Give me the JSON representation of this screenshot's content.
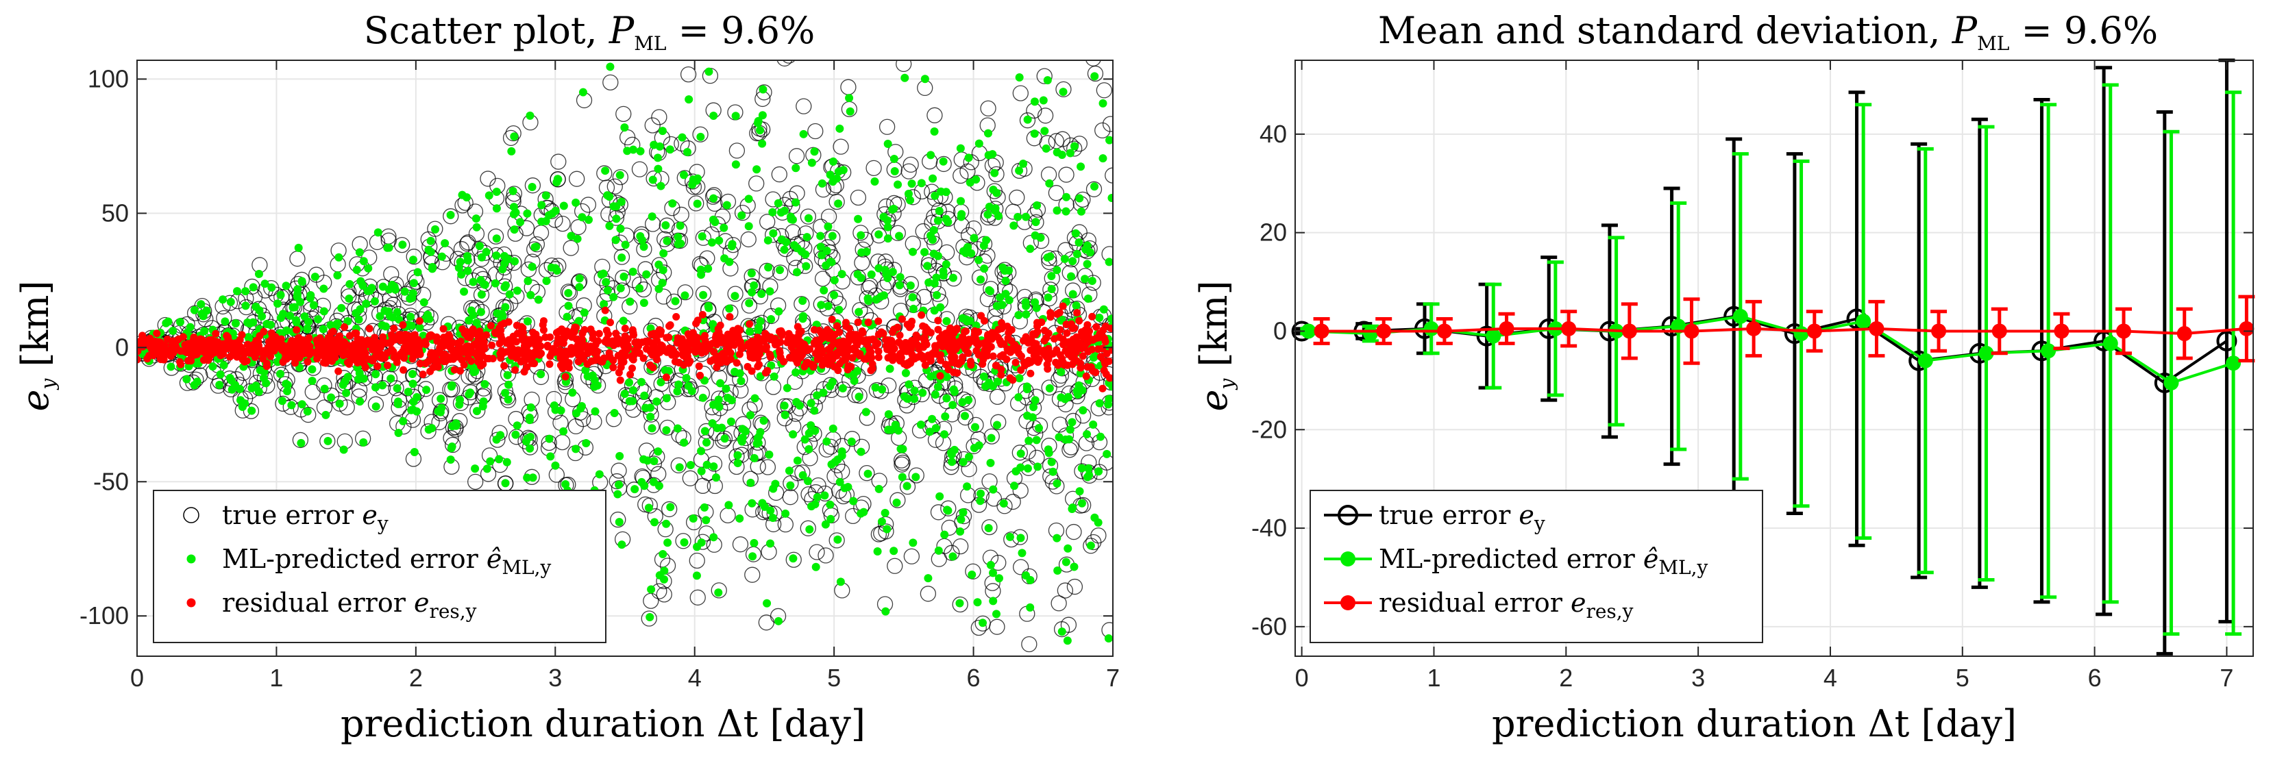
{
  "chart_data": [
    {
      "type": "scatter",
      "title": {
        "text": "Scatter plot, ",
        "var": "P",
        "sub": "ML",
        "rest": " = 9.6%"
      },
      "xlabel": "prediction duration Δt [day]",
      "ylabel": {
        "var": "e",
        "sub": "y",
        "unit": "[km]"
      },
      "xlim": [
        0,
        7
      ],
      "ylim": [
        -115,
        107
      ],
      "xticks": [
        "0",
        "1",
        "2",
        "3",
        "4",
        "5",
        "6",
        "7"
      ],
      "yticks": [
        "100",
        "50",
        "0",
        "-50",
        "-100"
      ],
      "ytick_values": [
        100,
        50,
        0,
        -50,
        -100
      ],
      "xtick_values": [
        0,
        1,
        2,
        3,
        4,
        5,
        6,
        7
      ],
      "grid": true,
      "legend_position": "bottom-left",
      "legend": [
        {
          "label": "true error ",
          "var": "e",
          "sub": "y",
          "marker": "open-circle",
          "color": "#000000"
        },
        {
          "label": "ML-predicted error ",
          "var": "ê",
          "sub": "ML,y",
          "marker": "dot",
          "color": "#00ee00"
        },
        {
          "label": "residual error ",
          "var": "e",
          "sub": "res,y",
          "marker": "dot",
          "color": "#ff0000"
        }
      ],
      "series": [
        {
          "name": "true error",
          "color": "#000000",
          "envelope": [
            [
              0,
              3
            ],
            [
              1,
              35
            ],
            [
              2,
              55
            ],
            [
              3,
              95
            ],
            [
              4,
              110
            ],
            [
              5,
              110
            ],
            [
              6,
              110
            ],
            [
              7,
              112
            ]
          ],
          "count": 1400
        },
        {
          "name": "ML-predicted error",
          "color": "#00ee00",
          "envelope": [
            [
              0,
              3
            ],
            [
              1,
              30
            ],
            [
              2,
              50
            ],
            [
              3,
              88
            ],
            [
              4,
              100
            ],
            [
              5,
              100
            ],
            [
              6,
              100
            ],
            [
              7,
              105
            ]
          ],
          "count": 1400
        },
        {
          "name": "residual error",
          "color": "#ff0000",
          "envelope": [
            [
              0,
              4
            ],
            [
              1,
              6
            ],
            [
              2,
              8
            ],
            [
              3,
              10
            ],
            [
              4,
              9
            ],
            [
              5,
              9
            ],
            [
              6,
              10
            ],
            [
              7,
              14
            ]
          ],
          "count": 1600
        }
      ]
    },
    {
      "type": "line",
      "title": {
        "text": "Mean and standard deviation, ",
        "var": "P",
        "sub": "ML",
        "rest": " = 9.6%"
      },
      "xlabel": "prediction duration Δt [day]",
      "ylabel": {
        "var": "e",
        "sub": "y",
        "unit": "[km]"
      },
      "xlim": [
        -0.05,
        7.2
      ],
      "ylim": [
        -66,
        55
      ],
      "xticks": [
        "0",
        "1",
        "2",
        "3",
        "4",
        "5",
        "6",
        "7"
      ],
      "xtick_values": [
        0,
        1,
        2,
        3,
        4,
        5,
        6,
        7
      ],
      "yticks": [
        "40",
        "20",
        "0",
        "-20",
        "-40",
        "-60"
      ],
      "ytick_values": [
        40,
        20,
        0,
        -20,
        -40,
        -60
      ],
      "grid": true,
      "legend_position": "bottom-left",
      "legend": [
        {
          "label": "true error ",
          "var": "e",
          "sub": "y",
          "marker": "open-circle-line",
          "color": "#000000"
        },
        {
          "label": "ML-predicted error ",
          "var": "ê",
          "sub": "ML,y",
          "marker": "dot-line",
          "color": "#00ee00"
        },
        {
          "label": "residual error ",
          "var": "e",
          "sub": "res,y",
          "marker": "dot-line",
          "color": "#ff0000"
        }
      ],
      "series": [
        {
          "name": "true error",
          "color": "#000000",
          "x": [
            0,
            0.47,
            0.93,
            1.4,
            1.87,
            2.33,
            2.8,
            3.27,
            3.73,
            4.2,
            4.67,
            5.13,
            5.6,
            6.07,
            6.53,
            7.0
          ],
          "y": [
            0,
            0,
            0.5,
            -1,
            0.5,
            0,
            1,
            3,
            -0.5,
            2.5,
            -6,
            -4.5,
            -4,
            -2,
            -10.5,
            -2
          ],
          "err": [
            0.5,
            1.5,
            5,
            10.5,
            14.5,
            21.5,
            28,
            36,
            36.5,
            46,
            44,
            47.5,
            51,
            55.5,
            55,
            57
          ]
        },
        {
          "name": "ML-predicted error",
          "color": "#00ee00",
          "x": [
            0.05,
            0.52,
            0.98,
            1.45,
            1.92,
            2.38,
            2.85,
            3.32,
            3.78,
            4.25,
            4.72,
            5.18,
            5.65,
            6.12,
            6.58,
            7.05
          ],
          "y": [
            0,
            -0.5,
            0.5,
            -1,
            0.5,
            0,
            1,
            3,
            -0.5,
            2,
            -6,
            -4.5,
            -4,
            -2.5,
            -10.5,
            -6.5
          ],
          "err": [
            0.5,
            1.5,
            5,
            10.5,
            13.5,
            19,
            25,
            33,
            35,
            44,
            43,
            46,
            50,
            52.5,
            51,
            55
          ]
        },
        {
          "name": "residual error",
          "color": "#ff0000",
          "x": [
            0.15,
            0.62,
            1.08,
            1.55,
            2.02,
            2.48,
            2.95,
            3.42,
            3.88,
            4.35,
            4.82,
            5.28,
            5.75,
            6.22,
            6.68,
            7.15
          ],
          "y": [
            0,
            0,
            0,
            0.5,
            0.5,
            0,
            0,
            0.5,
            0,
            0.5,
            0,
            0,
            0,
            0,
            -0.5,
            0.5
          ],
          "err": [
            2.5,
            2.5,
            2.5,
            3,
            3.5,
            5.5,
            6.5,
            5.5,
            4,
            5.5,
            4,
            4.5,
            3.5,
            4.5,
            5,
            6.5
          ]
        }
      ]
    }
  ]
}
